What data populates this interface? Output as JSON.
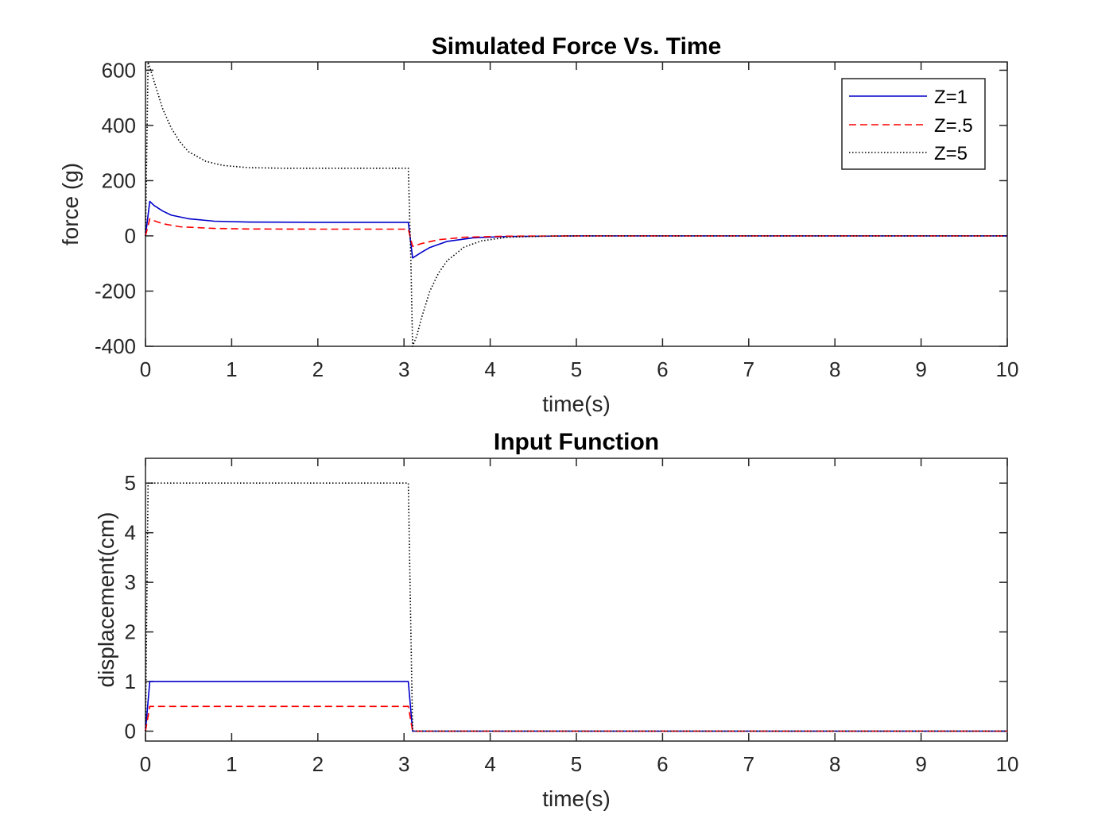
{
  "chart_data": [
    {
      "type": "line",
      "title": "Simulated Force Vs. Time",
      "xlabel": "time(s)",
      "ylabel": "force (g)",
      "xlim": [
        0,
        10
      ],
      "ylim": [
        -400,
        630
      ],
      "xticks": [
        0,
        1,
        2,
        3,
        4,
        5,
        6,
        7,
        8,
        9,
        10
      ],
      "yticks": [
        -400,
        -200,
        0,
        200,
        400,
        600
      ],
      "grid": false,
      "legend": "top-right",
      "series": [
        {
          "name": "Z=1",
          "color": "#0000cc",
          "dash": "solid",
          "x": [
            0,
            0.05,
            0.1,
            0.2,
            0.3,
            0.5,
            0.8,
            1.2,
            2,
            3.05,
            3.1,
            3.2,
            3.3,
            3.5,
            3.8,
            4.2,
            5,
            10
          ],
          "y": [
            0,
            125,
            110,
            90,
            75,
            62,
            53,
            50,
            49,
            49,
            -80,
            -60,
            -42,
            -20,
            -7,
            -2,
            0,
            0
          ]
        },
        {
          "name": "Z=.5",
          "color": "#ff0000",
          "dash": "dashed",
          "x": [
            0,
            0.05,
            0.1,
            0.2,
            0.4,
            0.8,
            1.2,
            2,
            3.05,
            3.1,
            3.2,
            3.4,
            3.7,
            4.2,
            5,
            10
          ],
          "y": [
            0,
            62,
            55,
            44,
            33,
            27,
            25,
            24.5,
            24.5,
            -38,
            -28,
            -14,
            -5,
            -1,
            0,
            0
          ]
        },
        {
          "name": "Z=5",
          "color": "#000000",
          "dash": "dotted",
          "x": [
            0,
            0.03,
            0.1,
            0.2,
            0.3,
            0.4,
            0.5,
            0.7,
            0.9,
            1.2,
            1.6,
            2,
            3.05,
            3.08,
            3.1,
            3.15,
            3.2,
            3.3,
            3.4,
            3.5,
            3.7,
            3.9,
            4.2,
            4.6,
            5,
            10
          ],
          "y": [
            0,
            630,
            560,
            460,
            390,
            340,
            305,
            270,
            255,
            247,
            245,
            245,
            245,
            -100,
            -400,
            -360,
            -300,
            -200,
            -135,
            -90,
            -40,
            -18,
            -5,
            -1,
            0,
            0
          ]
        }
      ]
    },
    {
      "type": "line",
      "title": "Input Function",
      "xlabel": "time(s)",
      "ylabel": "displacement(cm)",
      "xlim": [
        0,
        10
      ],
      "ylim": [
        -0.2,
        5.5
      ],
      "xticks": [
        0,
        1,
        2,
        3,
        4,
        5,
        6,
        7,
        8,
        9,
        10
      ],
      "yticks": [
        0,
        1,
        2,
        3,
        4,
        5
      ],
      "grid": false,
      "series": [
        {
          "name": "Z=1",
          "color": "#0000cc",
          "dash": "solid",
          "x": [
            0,
            0.05,
            3.05,
            3.1,
            10
          ],
          "y": [
            0,
            1,
            1,
            0,
            0
          ]
        },
        {
          "name": "Z=.5",
          "color": "#ff0000",
          "dash": "dashed",
          "x": [
            0,
            0.05,
            3.05,
            3.1,
            10
          ],
          "y": [
            0,
            0.5,
            0.5,
            0,
            0
          ]
        },
        {
          "name": "Z=5",
          "color": "#000000",
          "dash": "dotted",
          "x": [
            0,
            0.03,
            3.05,
            3.1,
            10
          ],
          "y": [
            0,
            5,
            5,
            0,
            0
          ]
        }
      ]
    }
  ]
}
